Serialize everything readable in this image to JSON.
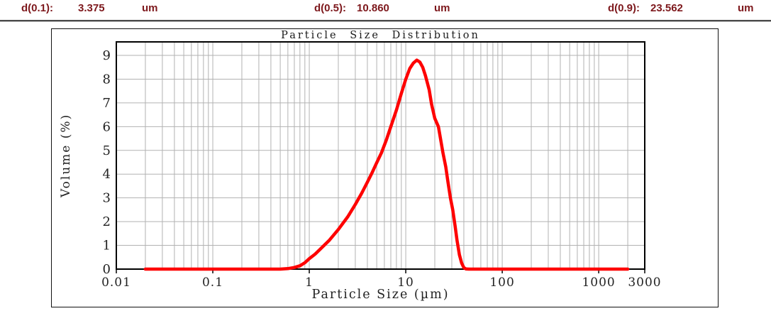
{
  "header": {
    "items": [
      {
        "label": "d(0.1):",
        "value": "3.375",
        "unit": "um"
      },
      {
        "label": "d(0.5):",
        "value": "10.860",
        "unit": "um"
      },
      {
        "label": "d(0.9):",
        "value": "23.562",
        "unit": "um"
      }
    ]
  },
  "colors": {
    "header_text": "#7d181c",
    "curve_red": "#fe0000",
    "grid_gray": "#b2b2b2",
    "axis_black": "#000000"
  },
  "chart_data": {
    "type": "line",
    "title": "Particle Size Distribution",
    "xlabel": "Particle Size (µm)",
    "ylabel": "Volume (%)",
    "x_scale": "log",
    "xlim": [
      0.01,
      3000
    ],
    "ylim": [
      0,
      9.57
    ],
    "x_major_ticks": [
      0.01,
      0.1,
      1,
      10,
      100,
      1000,
      3000
    ],
    "x_tick_labels": [
      "0.01",
      "0.1",
      "1",
      "10",
      "100",
      "1000",
      "3000"
    ],
    "y_ticks": [
      0,
      1,
      2,
      3,
      4,
      5,
      6,
      7,
      8,
      9
    ],
    "grid": true,
    "legend": "none",
    "line_color": "#fe0000",
    "series": [
      {
        "name": "Volume (%)",
        "x": [
          0.02,
          0.1,
          0.3,
          0.5,
          0.6,
          0.7,
          0.8,
          0.9,
          1.0,
          1.15,
          1.3,
          1.6,
          2.0,
          2.5,
          3.0,
          3.5,
          4.0,
          4.5,
          5.0,
          5.6,
          6.3,
          7.0,
          8.0,
          9.0,
          10.0,
          11.0,
          12.0,
          13.0,
          14.0,
          15.0,
          16.0,
          17.5,
          18.5,
          20.0,
          21.8,
          23.0,
          24.3,
          26.0,
          27.3,
          29.0,
          30.7,
          32.5,
          34.0,
          36.0,
          38.0,
          40.0,
          42.0,
          45.0,
          60,
          100,
          300,
          1000,
          2000
        ],
        "y": [
          0,
          0,
          0,
          0,
          0.02,
          0.07,
          0.14,
          0.27,
          0.44,
          0.63,
          0.84,
          1.2,
          1.67,
          2.2,
          2.72,
          3.2,
          3.66,
          4.08,
          4.48,
          4.9,
          5.45,
          6.0,
          6.7,
          7.4,
          8.0,
          8.45,
          8.68,
          8.8,
          8.72,
          8.5,
          8.15,
          7.55,
          6.95,
          6.35,
          6.0,
          5.45,
          4.9,
          4.3,
          3.7,
          3.0,
          2.5,
          1.8,
          1.2,
          0.6,
          0.25,
          0.06,
          0.01,
          0,
          0,
          0,
          0,
          0,
          0
        ]
      }
    ]
  }
}
